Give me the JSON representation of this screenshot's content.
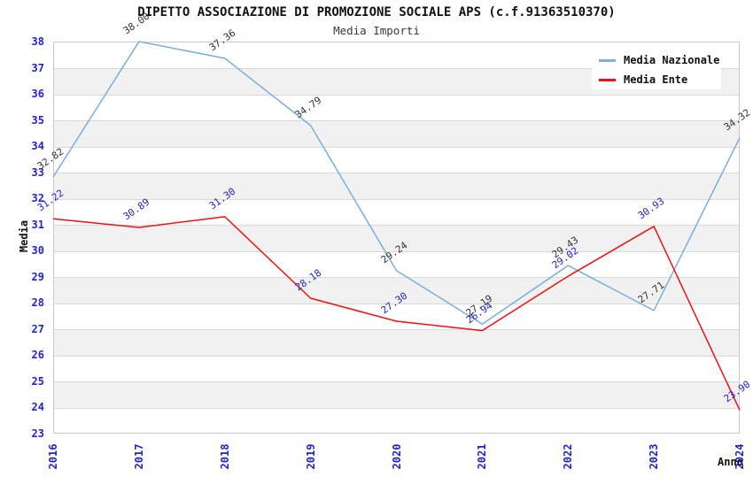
{
  "chart_data": {
    "type": "line",
    "title": "DIPETTO ASSOCIAZIONE DI PROMOZIONE SOCIALE APS (c.f.91363510370)",
    "subtitle": "Media Importi",
    "xlabel": "Anno",
    "ylabel": "Media",
    "categories": [
      "2016",
      "2017",
      "2018",
      "2019",
      "2020",
      "2021",
      "2022",
      "2023",
      "2024"
    ],
    "series": [
      {
        "name": "Media Nazionale",
        "color": "#7aaede",
        "label_color": "#333333",
        "values": [
          32.82,
          38.0,
          37.36,
          34.79,
          29.24,
          27.19,
          29.43,
          27.71,
          34.32
        ]
      },
      {
        "name": "Media Ente",
        "color": "#ee1111",
        "label_color": "#2323cc",
        "values": [
          31.22,
          30.89,
          31.3,
          28.18,
          27.3,
          26.94,
          29.02,
          30.93,
          23.9
        ]
      }
    ],
    "ylim": [
      23,
      38
    ],
    "ytick_step": 1,
    "grid": "horizontal-only",
    "band_fill": "alternating horizontal rows",
    "legend_position": "top-right-inside",
    "style": {
      "tick_color": "#2323cc",
      "grid_color": "#d9d9d9",
      "band_color": "#f1f1f1",
      "plot_border_color": "#c9c9c9",
      "background": "#ffffff"
    }
  }
}
